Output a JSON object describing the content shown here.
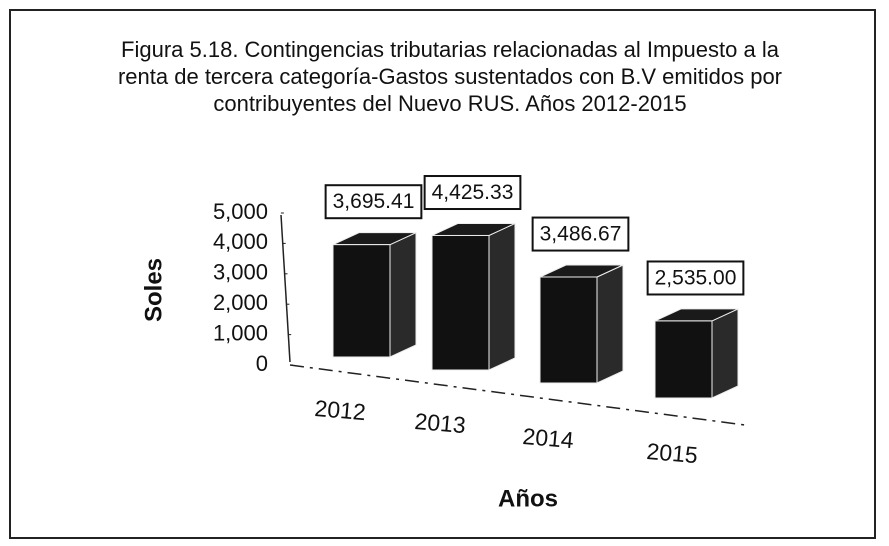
{
  "chart_data": {
    "type": "bar3d",
    "title": "Figura 5.18.  Contingencias tributarias relacionadas al Impuesto a la renta de tercera categoría-Gastos sustentados con B.V emitidos por contribuyentes del Nuevo RUS. Años 2012-2015",
    "y_label": "Soles",
    "x_label": "Años",
    "categories": [
      "2012",
      "2013",
      "2014",
      "2015"
    ],
    "values": [
      3695.41,
      4425.33,
      3486.67,
      2535.0
    ],
    "value_labels": [
      "3,695.41",
      "4,425.33",
      "3,486.67",
      "2,535.00"
    ],
    "color": "#111111",
    "ylim": [
      0,
      5000
    ],
    "yticks": [
      0,
      {
        "value": 1000,
        "label": "1,000"
      },
      {
        "value": 2000,
        "label": "2,000"
      },
      {
        "value": 3000,
        "label": "3,000"
      },
      {
        "value": 4000,
        "label": "4,000"
      },
      {
        "value": 5000,
        "label": "5,000"
      }
    ]
  }
}
